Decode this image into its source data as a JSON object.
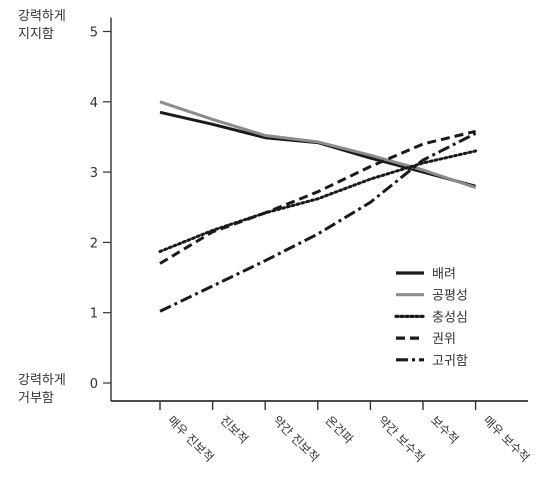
{
  "chart_data": {
    "type": "line",
    "categories": [
      "매우 진보적",
      "진보적",
      "약간 진보적",
      "온건파",
      "약간 보수적",
      "보수적",
      "매우 보수적"
    ],
    "yticks": [
      0,
      1,
      2,
      3,
      4,
      5
    ],
    "ylim": [
      0,
      5
    ],
    "ylabel_top": [
      "강력하게",
      "지지함"
    ],
    "ylabel_bottom": [
      "강력하게",
      "거부함"
    ],
    "grid": false,
    "legend_position": "right",
    "series": [
      {
        "name": "배려",
        "style": "solid",
        "color": "#1a1a1a",
        "values": [
          3.85,
          3.68,
          3.49,
          3.42,
          3.2,
          3.0,
          2.8
        ]
      },
      {
        "name": "공평성",
        "style": "solid",
        "color": "#8c8c8c",
        "values": [
          4.0,
          3.75,
          3.52,
          3.43,
          3.24,
          3.03,
          2.78
        ]
      },
      {
        "name": "충성심",
        "style": "dotted",
        "color": "#1a1a1a",
        "values": [
          1.87,
          2.17,
          2.42,
          2.62,
          2.9,
          3.13,
          3.3
        ]
      },
      {
        "name": "권위",
        "style": "dashed",
        "color": "#1a1a1a",
        "values": [
          1.7,
          2.15,
          2.42,
          2.72,
          3.08,
          3.4,
          3.58
        ]
      },
      {
        "name": "고귀함",
        "style": "dash-dot",
        "color": "#1a1a1a",
        "values": [
          1.02,
          1.38,
          1.74,
          2.12,
          2.57,
          3.17,
          3.55
        ]
      }
    ]
  }
}
